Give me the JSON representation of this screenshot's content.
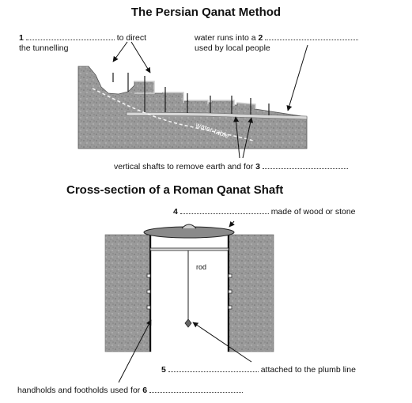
{
  "diagram1": {
    "title": "The Persian Qanat Method",
    "label1": {
      "num": "1",
      "text_a": "to direct",
      "text_b": "the tunnelling"
    },
    "label2": {
      "text_a": "water runs into a",
      "num": "2",
      "text_b": "used by local people"
    },
    "water_table": "water table",
    "label3": {
      "text": "vertical shafts to remove earth and for",
      "num": "3"
    }
  },
  "diagram2": {
    "title": "Cross-section of a Roman Qanat Shaft",
    "label4": {
      "num": "4",
      "text": "made of wood or stone"
    },
    "rod": "rod",
    "label5": {
      "num": "5",
      "text": "attached to the plumb line"
    },
    "label6": {
      "text": "handholds and footholds used for",
      "num": "6"
    }
  },
  "colors": {
    "earth": "#9a9a9a",
    "earth_dark": "#6e6e6e",
    "line": "#222222",
    "cover": "#8a8a8a"
  }
}
